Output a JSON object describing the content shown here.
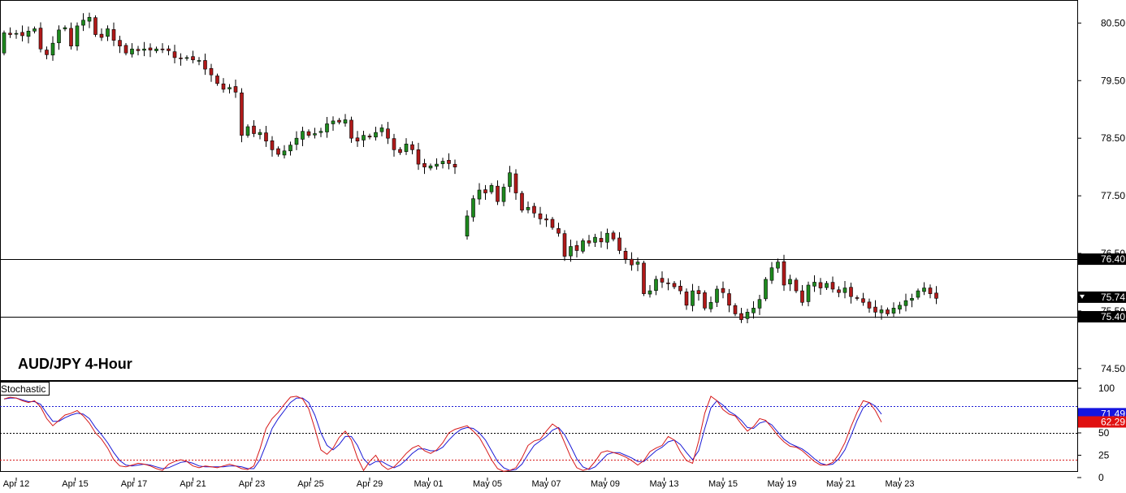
{
  "chart_data": {
    "type": "candlestick",
    "title": "AUD/JPY 4-Hour",
    "price_axis": {
      "ticks": [
        "80.50",
        "79.50",
        "78.50",
        "77.50",
        "76.50",
        "75.50",
        "74.50"
      ],
      "ylim": [
        74.3,
        80.9
      ]
    },
    "x_labels": [
      "Apr 12",
      "Apr 15",
      "Apr 17",
      "Apr 21",
      "Apr 23",
      "Apr 25",
      "Apr 29",
      "May 01",
      "May 05",
      "May 07",
      "May 09",
      "May 13",
      "May 15",
      "May 19",
      "May 21",
      "May 23"
    ],
    "levels": [
      {
        "value": 76.4,
        "label": "76.40"
      },
      {
        "value": 75.4,
        "label": "75.40"
      }
    ],
    "current_price": {
      "value": 75.74,
      "label": "75.74"
    },
    "closes": [
      80.33,
      80.3,
      80.32,
      80.28,
      80.36,
      80.4,
      80.05,
      79.95,
      80.15,
      80.38,
      80.42,
      80.1,
      80.45,
      80.55,
      80.6,
      80.3,
      80.25,
      80.4,
      80.2,
      80.1,
      79.98,
      80.05,
      80.02,
      80.05,
      80.03,
      80.05,
      80.04,
      80.02,
      79.9,
      79.88,
      79.9,
      79.86,
      79.85,
      79.7,
      79.6,
      79.45,
      79.35,
      79.38,
      79.3,
      78.55,
      78.7,
      78.58,
      78.6,
      78.45,
      78.3,
      78.22,
      78.28,
      78.38,
      78.5,
      78.62,
      78.55,
      78.58,
      78.62,
      78.75,
      78.8,
      78.78,
      78.82,
      78.5,
      78.45,
      78.55,
      78.52,
      78.6,
      78.68,
      78.5,
      78.3,
      78.25,
      78.4,
      78.3,
      78.05,
      78.0,
      78.02,
      78.05,
      78.1,
      78.06,
      78.0,
      null,
      77.15,
      77.45,
      77.6,
      77.55,
      77.68,
      77.4,
      77.65,
      77.9,
      77.55,
      77.25,
      77.3,
      77.2,
      77.1,
      77.08,
      76.95,
      76.85,
      76.45,
      76.62,
      76.55,
      76.72,
      76.68,
      76.78,
      76.7,
      76.85,
      76.75,
      76.55,
      76.4,
      76.3,
      76.35,
      75.8,
      75.85,
      76.05,
      76.0,
      75.98,
      75.92,
      75.85,
      75.6,
      75.85,
      75.8,
      75.55,
      75.65,
      75.88,
      75.82,
      75.6,
      75.45,
      75.35,
      75.48,
      75.55,
      75.7,
      76.05,
      76.25,
      76.35,
      75.95,
      76.05,
      75.85,
      75.65,
      75.95,
      76.0,
      75.9,
      75.98,
      75.88,
      75.82,
      75.9,
      75.75,
      75.72,
      75.65,
      75.55,
      75.48,
      75.52,
      75.45,
      75.55,
      75.6,
      75.68,
      75.72,
      75.85,
      75.9,
      75.8,
      75.72
    ],
    "stochastic": {
      "name": "Stochastic",
      "ticks": [
        "100",
        "50",
        "25",
        "0"
      ],
      "levels": [
        80,
        50,
        20
      ],
      "ylim": [
        0,
        100
      ],
      "current_k": {
        "value": 62.29,
        "label": "62.29"
      },
      "current_d": {
        "value": 71.49,
        "label": "71.49"
      },
      "k_values": [
        88,
        90,
        89,
        86,
        84,
        86,
        79,
        66,
        58,
        64,
        70,
        72,
        75,
        69,
        61,
        50,
        43,
        33,
        20,
        13,
        12,
        14,
        16,
        15,
        13,
        10,
        8,
        15,
        18,
        20,
        18,
        13,
        11,
        13,
        12,
        11,
        13,
        15,
        13,
        10,
        9,
        13,
        32,
        55,
        66,
        73,
        82,
        90,
        91,
        88,
        77,
        55,
        31,
        26,
        33,
        45,
        52,
        42,
        22,
        8,
        18,
        25,
        14,
        9,
        12,
        19,
        27,
        33,
        36,
        30,
        27,
        31,
        39,
        50,
        54,
        56,
        58,
        52,
        45,
        33,
        20,
        10,
        7,
        8,
        11,
        22,
        36,
        41,
        43,
        52,
        60,
        55,
        39,
        23,
        11,
        8,
        10,
        18,
        28,
        30,
        28,
        26,
        23,
        19,
        14,
        19,
        29,
        33,
        36,
        46,
        42,
        29,
        19,
        16,
        41,
        72,
        91,
        86,
        76,
        71,
        69,
        60,
        52,
        57,
        66,
        64,
        56,
        47,
        40,
        35,
        34,
        30,
        24,
        18,
        14,
        14,
        17,
        26,
        39,
        57,
        73,
        86,
        84,
        75,
        62
      ],
      "d_values": [
        88,
        89,
        89,
        87,
        85,
        85,
        82,
        72,
        63,
        63,
        67,
        70,
        72,
        71,
        66,
        56,
        48,
        39,
        28,
        19,
        14,
        13,
        14,
        15,
        14,
        12,
        10,
        11,
        14,
        17,
        18,
        16,
        13,
        12,
        12,
        12,
        12,
        13,
        13,
        12,
        10,
        10,
        20,
        37,
        55,
        66,
        75,
        84,
        89,
        89,
        84,
        70,
        50,
        36,
        31,
        37,
        46,
        46,
        36,
        21,
        14,
        18,
        18,
        14,
        11,
        14,
        20,
        27,
        32,
        32,
        30,
        30,
        34,
        42,
        49,
        54,
        56,
        55,
        50,
        42,
        30,
        18,
        11,
        8,
        9,
        15,
        26,
        36,
        41,
        46,
        53,
        56,
        48,
        35,
        21,
        12,
        9,
        12,
        19,
        26,
        28,
        28,
        25,
        22,
        18,
        18,
        24,
        30,
        34,
        40,
        42,
        37,
        28,
        20,
        30,
        55,
        78,
        86,
        81,
        74,
        70,
        64,
        56,
        55,
        61,
        63,
        59,
        51,
        43,
        38,
        35,
        32,
        27,
        21,
        16,
        14,
        15,
        21,
        31,
        47,
        64,
        78,
        84,
        80,
        71
      ]
    },
    "colors": {
      "bull": "#1e8a1e",
      "bear": "#b01919",
      "k_line": "#d61818",
      "d_line": "#1a1ad6",
      "current_tag": "#000000",
      "d_tag": "#1515e0",
      "k_tag": "#e01010"
    }
  }
}
